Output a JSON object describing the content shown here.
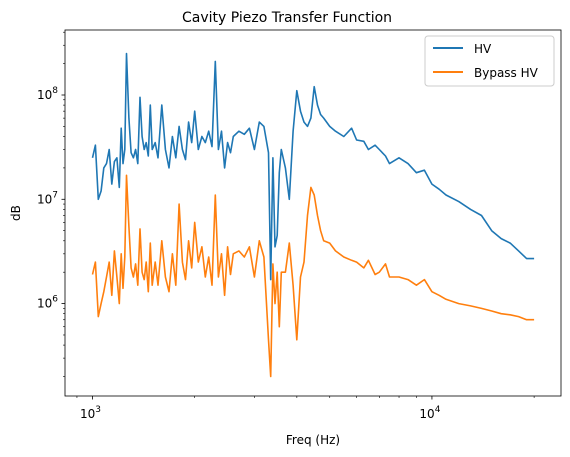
{
  "chart_data": {
    "type": "line",
    "title": "Cavity Piezo Transfer Function",
    "xlabel": "Freq (Hz)",
    "ylabel": "dB",
    "xscale": "log",
    "yscale": "log",
    "xlim": [
      830,
      24000
    ],
    "ylim": [
      130000,
      420000000
    ],
    "grid": false,
    "legend_position": "top-right",
    "x_ticks": [
      {
        "value": 1000,
        "base": "10",
        "exp": "3"
      },
      {
        "value": 10000,
        "base": "10",
        "exp": "4"
      }
    ],
    "y_ticks": [
      {
        "value": 1000000,
        "base": "10",
        "exp": "6"
      },
      {
        "value": 10000000,
        "base": "10",
        "exp": "7"
      },
      {
        "value": 100000000,
        "base": "10",
        "exp": "8"
      }
    ],
    "series": [
      {
        "name": "HV",
        "color": "#1f77b4",
        "x": [
          1000,
          1020,
          1040,
          1060,
          1080,
          1100,
          1120,
          1140,
          1160,
          1180,
          1200,
          1215,
          1230,
          1245,
          1260,
          1280,
          1300,
          1320,
          1340,
          1360,
          1380,
          1400,
          1420,
          1440,
          1460,
          1480,
          1500,
          1530,
          1560,
          1600,
          1640,
          1680,
          1720,
          1760,
          1800,
          1840,
          1880,
          1920,
          1960,
          2000,
          2050,
          2100,
          2150,
          2200,
          2250,
          2300,
          2350,
          2400,
          2450,
          2500,
          2550,
          2600,
          2700,
          2800,
          2900,
          3000,
          3100,
          3200,
          3300,
          3350,
          3400,
          3450,
          3500,
          3550,
          3600,
          3700,
          3800,
          3900,
          4000,
          4100,
          4200,
          4300,
          4400,
          4500,
          4600,
          4700,
          4800,
          5000,
          5200,
          5500,
          5800,
          6000,
          6300,
          6500,
          6800,
          7000,
          7300,
          7500,
          8000,
          8500,
          9000,
          9500,
          10000,
          10500,
          11000,
          12000,
          13000,
          14000,
          15000,
          16000,
          17000,
          18000,
          19000,
          20000
        ],
        "y": [
          25000000,
          33000000,
          10000000,
          12000000,
          20000000,
          22000000,
          30000000,
          14000000,
          23000000,
          25000000,
          13000000,
          48000000,
          22000000,
          30000000,
          250000000,
          60000000,
          28000000,
          25000000,
          30000000,
          22000000,
          95000000,
          40000000,
          30000000,
          35000000,
          26000000,
          80000000,
          30000000,
          35000000,
          25000000,
          80000000,
          30000000,
          20000000,
          40000000,
          25000000,
          50000000,
          30000000,
          24000000,
          55000000,
          35000000,
          70000000,
          30000000,
          40000000,
          35000000,
          45000000,
          32000000,
          210000000,
          30000000,
          45000000,
          20000000,
          35000000,
          28000000,
          40000000,
          45000000,
          42000000,
          48000000,
          30000000,
          55000000,
          50000000,
          28000000,
          1700000,
          25000000,
          3500000,
          4500000,
          18000000,
          30000000,
          20000000,
          10000000,
          45000000,
          110000000,
          70000000,
          55000000,
          50000000,
          60000000,
          120000000,
          80000000,
          65000000,
          60000000,
          50000000,
          45000000,
          40000000,
          48000000,
          37000000,
          36000000,
          30000000,
          33000000,
          30000000,
          26000000,
          22000000,
          25000000,
          22000000,
          18000000,
          19000000,
          14000000,
          12500000,
          11000000,
          9500000,
          8000000,
          7000000,
          5000000,
          4200000,
          3800000,
          3200000,
          2700000,
          2700000
        ]
      },
      {
        "name": "Bypass HV",
        "color": "#ff7f0e",
        "x": [
          1000,
          1020,
          1040,
          1060,
          1080,
          1100,
          1120,
          1140,
          1160,
          1180,
          1200,
          1215,
          1230,
          1245,
          1260,
          1280,
          1300,
          1320,
          1340,
          1360,
          1380,
          1400,
          1420,
          1440,
          1460,
          1480,
          1500,
          1530,
          1560,
          1600,
          1640,
          1680,
          1720,
          1760,
          1800,
          1840,
          1880,
          1920,
          1960,
          2000,
          2050,
          2100,
          2150,
          2200,
          2250,
          2300,
          2350,
          2400,
          2450,
          2500,
          2550,
          2600,
          2700,
          2800,
          2900,
          3000,
          3100,
          3200,
          3300,
          3350,
          3400,
          3450,
          3500,
          3550,
          3600,
          3700,
          3800,
          3900,
          4000,
          4100,
          4200,
          4300,
          4400,
          4500,
          4600,
          4700,
          4800,
          5000,
          5200,
          5500,
          5800,
          6000,
          6300,
          6500,
          6800,
          7000,
          7300,
          7500,
          8000,
          8500,
          9000,
          9500,
          10000,
          10500,
          11000,
          12000,
          13000,
          14000,
          15000,
          16000,
          17000,
          18000,
          19000,
          20000
        ],
        "y": [
          1900000,
          2500000,
          750000,
          1000000,
          1300000,
          1800000,
          2500000,
          1200000,
          3200000,
          1800000,
          1000000,
          3000000,
          1400000,
          2800000,
          17000000,
          5500000,
          2200000,
          1800000,
          2400000,
          1500000,
          5200000,
          2000000,
          1700000,
          2500000,
          1300000,
          3800000,
          1500000,
          2500000,
          1500000,
          4000000,
          1800000,
          1300000,
          3000000,
          1500000,
          9000000,
          2500000,
          1700000,
          4000000,
          2200000,
          6000000,
          2500000,
          3500000,
          1800000,
          2800000,
          1500000,
          11000000,
          1800000,
          3000000,
          1200000,
          3500000,
          1900000,
          3000000,
          3200000,
          2800000,
          3500000,
          1800000,
          4000000,
          2800000,
          450000,
          200000,
          2400000,
          1000000,
          2000000,
          600000,
          2000000,
          2000000,
          3800000,
          1500000,
          450000,
          1800000,
          2500000,
          7000000,
          13000000,
          11000000,
          7000000,
          5000000,
          4000000,
          3800000,
          3200000,
          2800000,
          2600000,
          2500000,
          2200000,
          2600000,
          1900000,
          2000000,
          2400000,
          1800000,
          1800000,
          1700000,
          1500000,
          1700000,
          1300000,
          1200000,
          1100000,
          1000000,
          950000,
          900000,
          850000,
          800000,
          780000,
          750000,
          700000,
          700000
        ]
      }
    ]
  }
}
